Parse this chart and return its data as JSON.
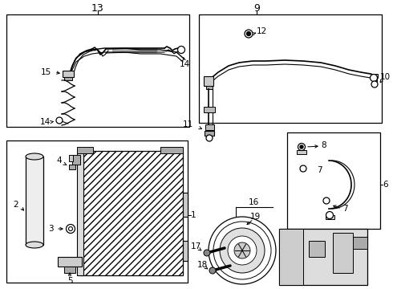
{
  "bg_color": "#ffffff",
  "line_color": "#000000",
  "figsize": [
    4.9,
    3.6
  ],
  "dpi": 100
}
